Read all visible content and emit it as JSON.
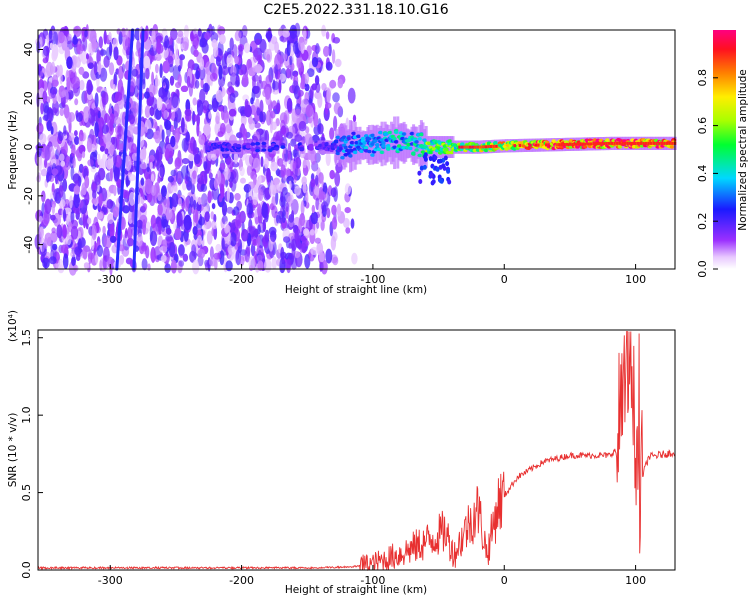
{
  "title": "C2E5.2022.331.18.10.G16",
  "colors": {
    "snr_line": "#e83030",
    "spectrogram_noise": "#8a2be2",
    "spectrogram_signal": "#2244ff",
    "axis": "#000000"
  },
  "chart_data": [
    {
      "type": "heatmap",
      "xlabel": "Height of straight line (km)",
      "ylabel": "Frequency (Hz)",
      "xlim": [
        -355,
        130
      ],
      "ylim": [
        -50,
        48
      ],
      "xticks": [
        -300,
        -200,
        -100,
        0,
        100
      ],
      "yticks": [
        -40,
        -20,
        0,
        20,
        40
      ],
      "colorbar": {
        "label": "Normalized spectral amplitude",
        "range": [
          0.0,
          1.0
        ],
        "ticks": [
          "0.0",
          "0.2",
          "0.4",
          "0.6",
          "0.8"
        ],
        "colormap": "rainbow (white at 0 → purple → blue → cyan → green → yellow → red → magenta at 1)"
      },
      "features": {
        "noise_region_x": [
          -355,
          -110
        ],
        "signal_band_center_hz": [
          [
            -220,
            0
          ],
          [
            -130,
            0
          ],
          [
            -100,
            1
          ],
          [
            -80,
            2
          ],
          [
            -60,
            0
          ],
          [
            -40,
            0
          ],
          [
            -20,
            0
          ],
          [
            0,
            0.5
          ],
          [
            40,
            1
          ],
          [
            80,
            1.5
          ],
          [
            130,
            1.5
          ]
        ],
        "drifting_tracks": [
          {
            "x_start": -295,
            "f_start": -50,
            "x_end": -283,
            "f_end": 48
          },
          {
            "x_start": -282,
            "f_start": -50,
            "x_end": -275,
            "f_end": 48
          }
        ]
      }
    },
    {
      "type": "line",
      "xlabel": "Height of straight line (km)",
      "ylabel": "SNR (10 * v/v)",
      "y_multiplier": "(x10⁴)",
      "xlim": [
        -355,
        130
      ],
      "ylim": [
        0.0,
        1.55
      ],
      "xticks": [
        -300,
        -200,
        -100,
        0,
        100
      ],
      "yticks": [
        "0.0",
        "0.5",
        "1.0",
        "1.5"
      ],
      "series": [
        {
          "envelope": [
            [
              -355,
              0.02
            ],
            [
              -300,
              0.02
            ],
            [
              -250,
              0.02
            ],
            [
              -200,
              0.02
            ],
            [
              -150,
              0.02
            ],
            [
              -120,
              0.025
            ],
            [
              -100,
              0.04
            ],
            [
              -80,
              0.1
            ],
            [
              -60,
              0.18
            ],
            [
              -45,
              0.25
            ],
            [
              -38,
              0.1
            ],
            [
              -30,
              0.25
            ],
            [
              -20,
              0.4
            ],
            [
              -13,
              0.1
            ],
            [
              -5,
              0.42
            ],
            [
              10,
              0.6
            ],
            [
              30,
              0.7
            ],
            [
              50,
              0.74
            ],
            [
              80,
              0.74
            ],
            [
              86,
              0.78
            ],
            [
              90,
              1.0
            ],
            [
              95,
              1.35
            ],
            [
              100,
              0.9
            ],
            [
              103,
              0.55
            ],
            [
              110,
              0.73
            ],
            [
              130,
              0.76
            ]
          ]
        }
      ]
    }
  ],
  "colorbar_tick_labels": [
    "0.0",
    "0.2",
    "0.4",
    "0.6",
    "0.8"
  ]
}
